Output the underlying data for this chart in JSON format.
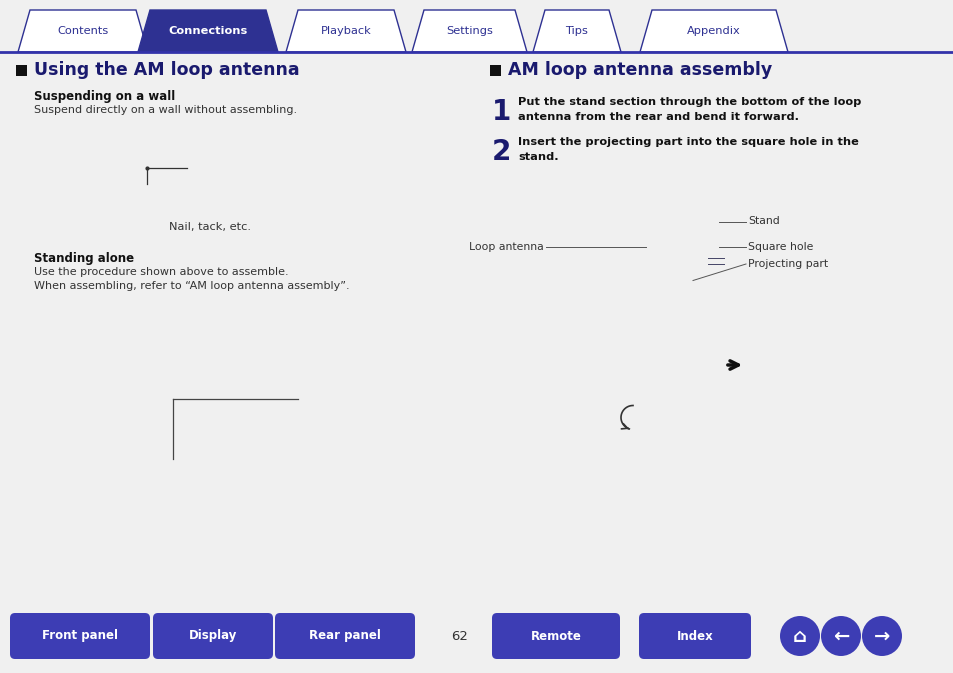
{
  "bg_color": "#ffffff",
  "top_line_color": "#3333aa",
  "tab_labels": [
    "Contents",
    "Connections",
    "Playback",
    "Settings",
    "Tips",
    "Appendix"
  ],
  "tab_active": 1,
  "tab_active_color": "#2e3192",
  "tab_inactive_color": "#ffffff",
  "tab_text_active_color": "#ffffff",
  "tab_text_inactive_color": "#2e3192",
  "tab_border_color": "#2e3192",
  "bottom_buttons": [
    "Front panel",
    "Display",
    "Rear panel",
    "Remote",
    "Index"
  ],
  "bottom_btn_color": "#3d3db4",
  "bottom_btn_text_color": "#ffffff",
  "page_number": "62",
  "left_section_title": "Using the AM loop antenna",
  "left_sub1_bold": "Suspending on a wall",
  "left_sub1_text": "Suspend directly on a wall without assembling.",
  "left_nail_label": "Nail, tack, etc.",
  "left_sub2_bold": "Standing alone",
  "left_sub2_text1": "Use the procedure shown above to assemble.",
  "left_sub2_text2": "When assembling, refer to “AM loop antenna assembly”.",
  "right_section_title": "AM loop antenna assembly",
  "right_step1_num": "1",
  "right_step1_text1": "Put the stand section through the bottom of the loop",
  "right_step1_text2": "antenna from the rear and bend it forward.",
  "right_step2_num": "2",
  "right_step2_text1": "Insert the projecting part into the square hole in the",
  "right_step2_text2": "stand.",
  "right_label_stand": "Stand",
  "right_label_square": "Square hole",
  "right_label_loop": "Loop antenna",
  "right_label_projecting": "Projecting part",
  "title_color": "#1a1a6e",
  "body_color": "#333333",
  "bold_color": "#111111",
  "step_number_color": "#1a1a6e",
  "diagram_edge": "#444466",
  "diagram_fill": "#f8f8f8",
  "diagram_inner": "#e0e0e0"
}
